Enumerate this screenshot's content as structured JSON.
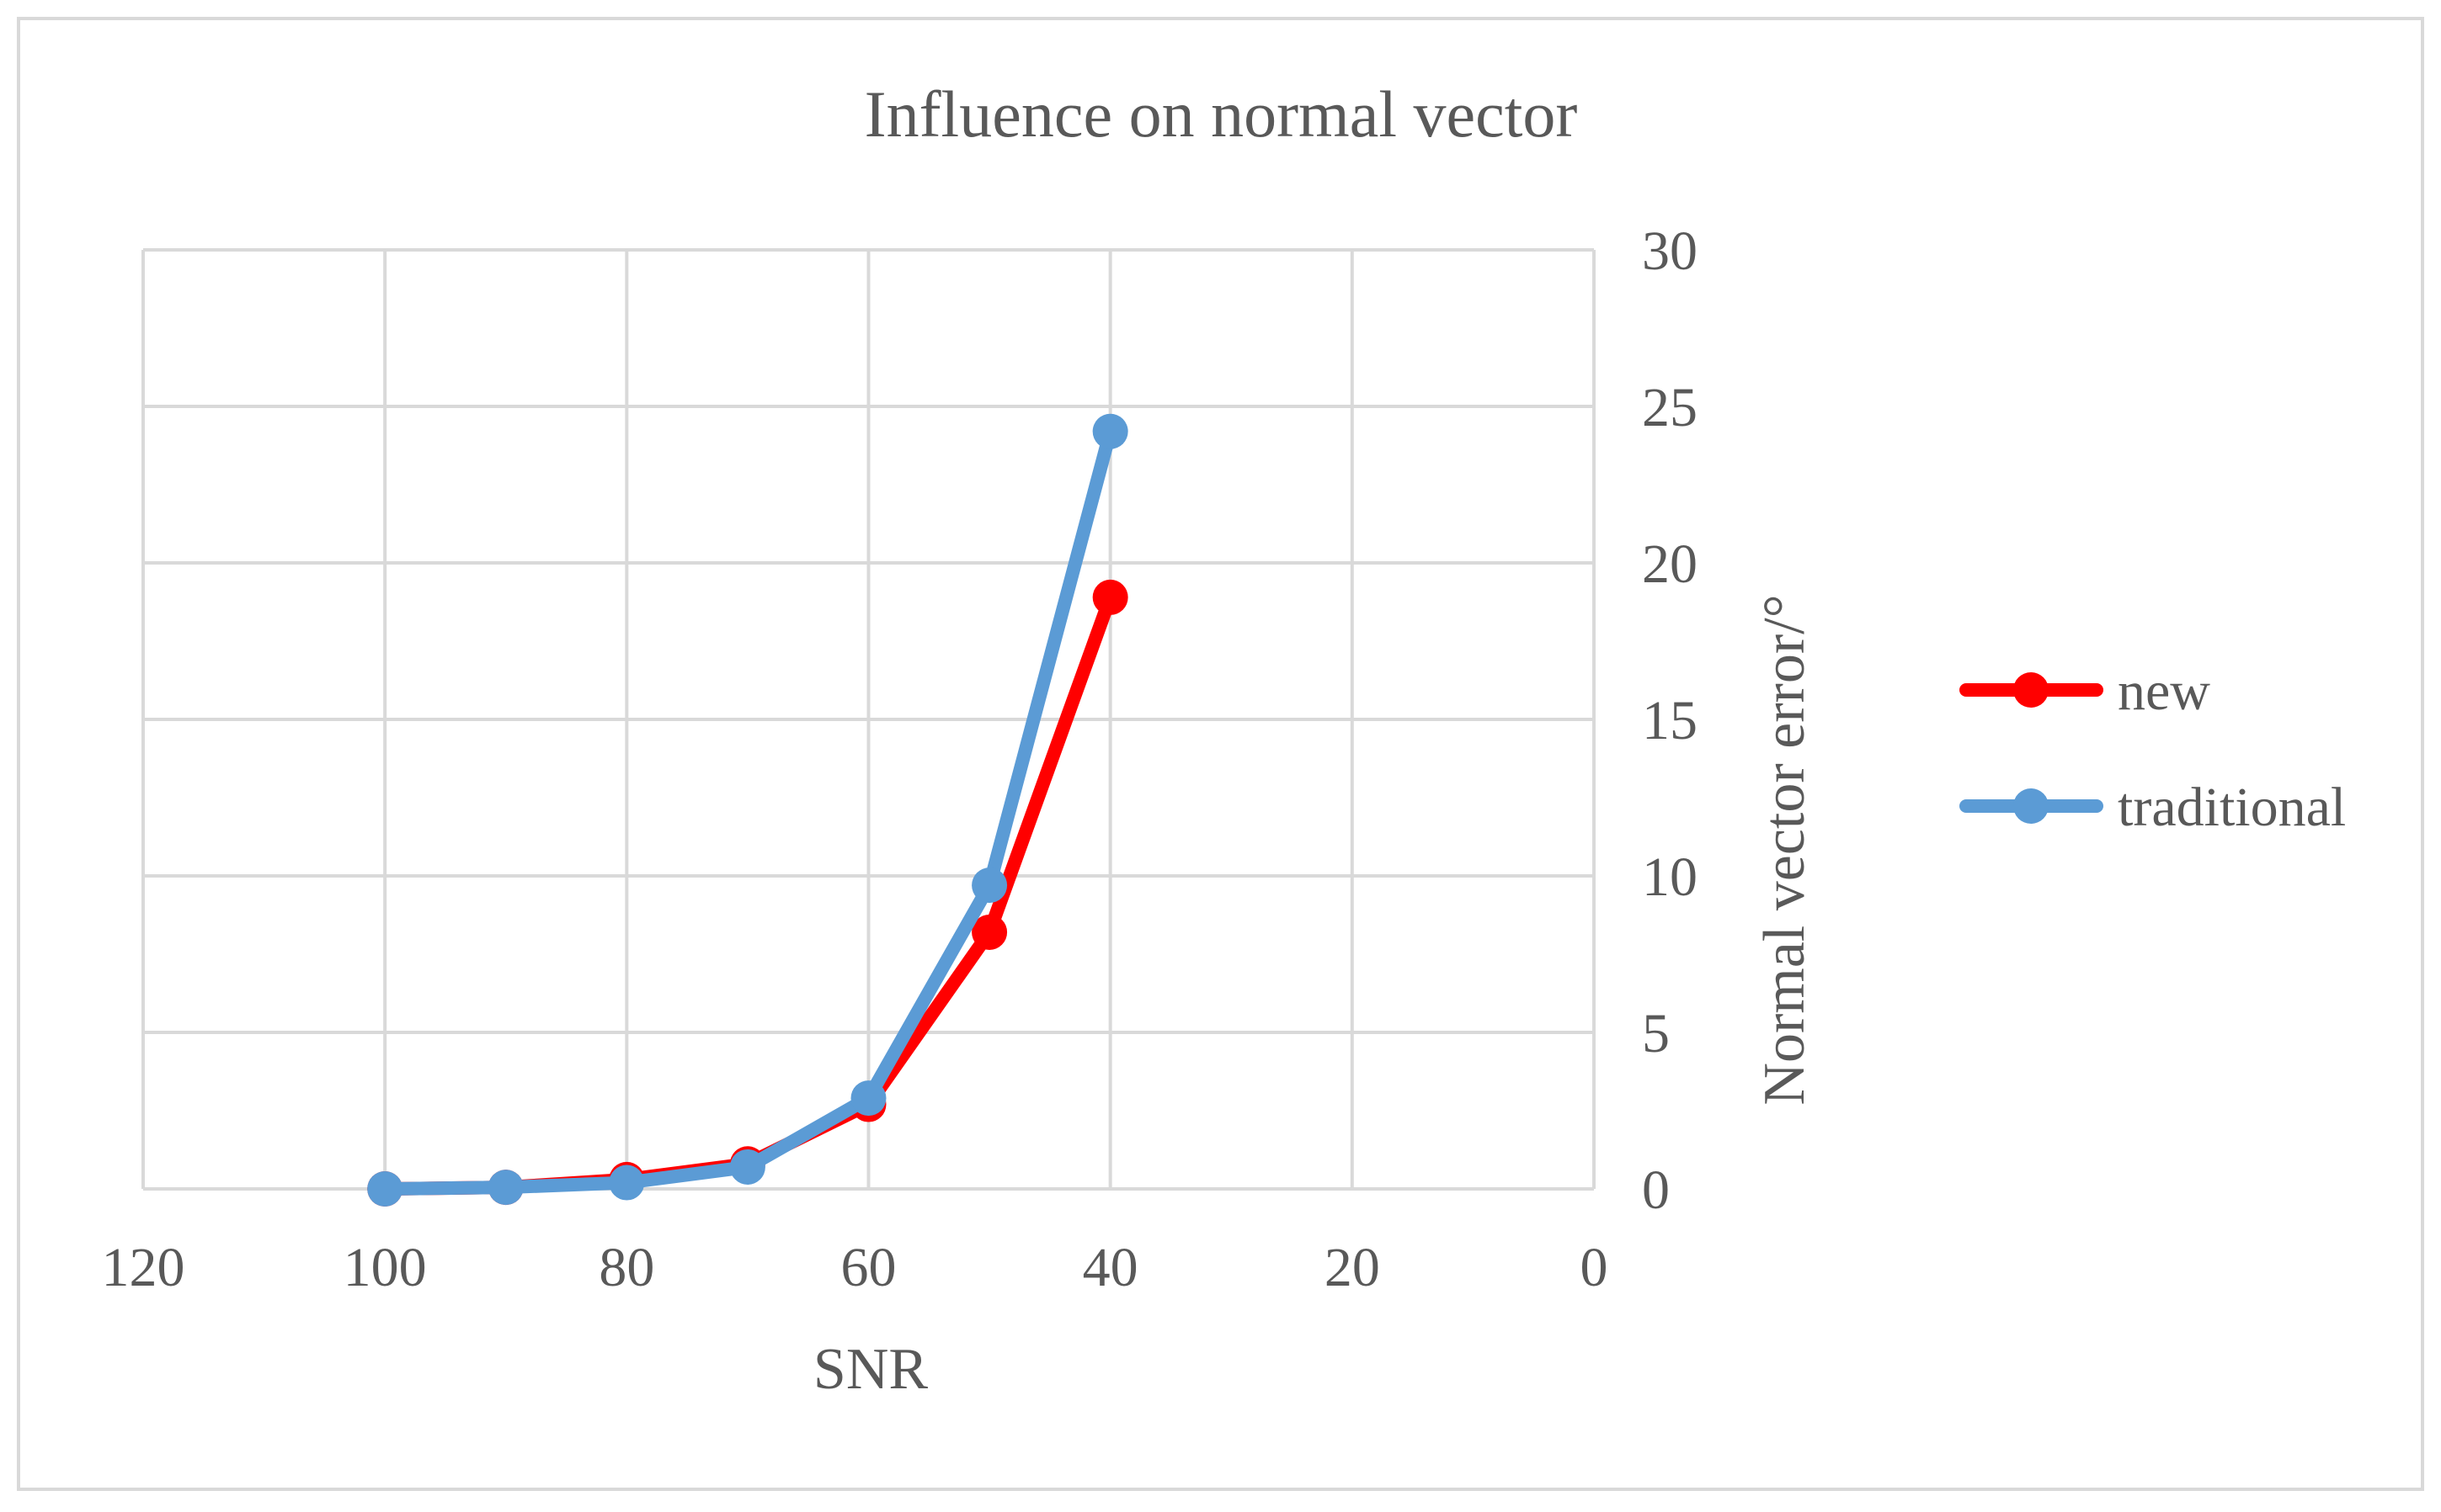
{
  "chart_data": {
    "type": "line",
    "title": "Influence on normal vector",
    "xlabel": "SNR",
    "ylabel": "Normal vector error/°",
    "x_reversed": true,
    "y_axis_side": "right",
    "xlim": [
      0,
      120
    ],
    "ylim": [
      0,
      30
    ],
    "x_ticks": [
      120,
      100,
      80,
      60,
      40,
      20,
      0
    ],
    "y_ticks": [
      0,
      5,
      10,
      15,
      20,
      25,
      30
    ],
    "grid": true,
    "legend": "right",
    "series": [
      {
        "name": "new",
        "color": "#ff0000",
        "points": [
          [
            100,
            0.0
          ],
          [
            90,
            0.05
          ],
          [
            80,
            0.3
          ],
          [
            70,
            0.8
          ],
          [
            60,
            2.7
          ],
          [
            50,
            8.2
          ],
          [
            40,
            18.9
          ]
        ]
      },
      {
        "name": "traditional",
        "color": "#5b9bd5",
        "points": [
          [
            100,
            0.0
          ],
          [
            90,
            0.05
          ],
          [
            80,
            0.2
          ],
          [
            70,
            0.7
          ],
          [
            60,
            2.9
          ],
          [
            50,
            9.7
          ],
          [
            40,
            24.2
          ]
        ]
      }
    ]
  }
}
